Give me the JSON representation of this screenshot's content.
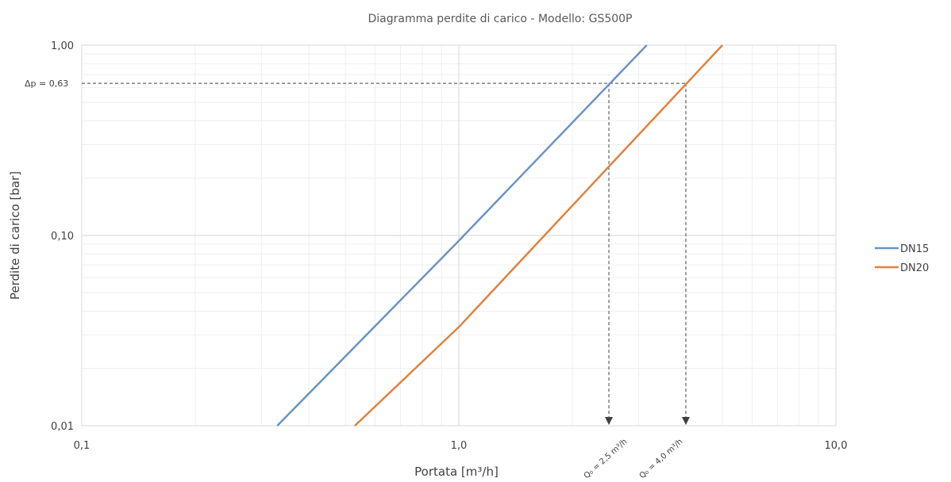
{
  "chart_data": {
    "type": "line",
    "title": "Diagramma perdite di carico - Modello: GS500P",
    "xlabel": "Portata [m³/h]",
    "ylabel": "Perdite di carico [bar]",
    "x_scale": "log",
    "y_scale": "log",
    "xlim": [
      0.1,
      10.0
    ],
    "ylim": [
      0.01,
      1.0
    ],
    "x_tick_labels": [
      "0,1",
      "1,0",
      "10,0"
    ],
    "y_tick_labels": [
      "0,01",
      "0,10",
      "1,00"
    ],
    "grid": true,
    "legend_position": "right",
    "series": [
      {
        "name": "DN15",
        "color": "#6A93C2",
        "x": [
          0.33,
          0.98,
          3.15
        ],
        "y": [
          0.01,
          0.09,
          1.0
        ]
      },
      {
        "name": "DN20",
        "color": "#E0823E",
        "x": [
          0.53,
          1.0,
          5.0
        ],
        "y": [
          0.01,
          0.033,
          1.0
        ]
      }
    ],
    "annotations": {
      "dp_label": "Δp = 0,63",
      "dp_value": 0.63,
      "q15_label": "Q₀ = 2,5 m³/h",
      "q15_value": 2.5,
      "q20_label": "Q₀ = 4,0 m³/h",
      "q20_value": 4.0
    }
  }
}
